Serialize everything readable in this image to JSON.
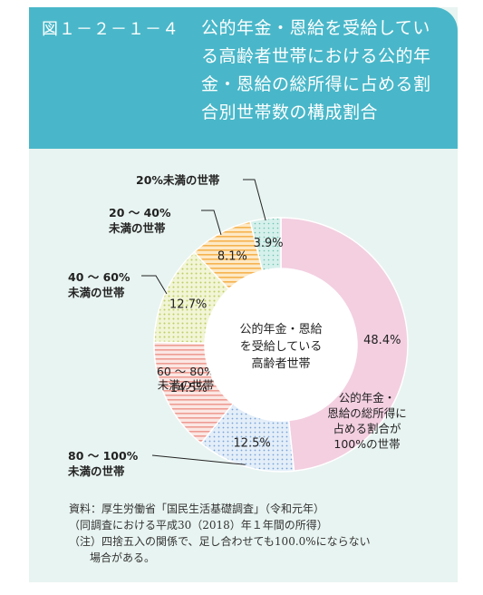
{
  "header": {
    "figure_number": "図１－２－１－４",
    "title": "公的年金・恩給を受給している高齢者世帯における公的年金・恩給の総所得に占める割合別世帯数の構成割合"
  },
  "chart_data": {
    "type": "pie",
    "title": "公的年金・恩給の総所得に占める割合別世帯数の構成割合",
    "center_label": [
      "公的年金・恩給",
      "を受給している",
      "高齢者世帯"
    ],
    "categories": [
      "公的年金・恩給の総所得に占める割合が100%の世帯",
      "80～100%未満の世帯",
      "60～80%未満の世帯",
      "40～60%未満の世帯",
      "20～40%未満の世帯",
      "20%未満の世帯"
    ],
    "values": [
      48.4,
      12.5,
      14.5,
      12.7,
      8.1,
      3.9
    ],
    "value_labels": [
      "48.4%",
      "12.5%",
      "14.5%",
      "12.7%",
      "8.1%",
      "3.9%"
    ],
    "category_labels": [
      [
        "公的年金・",
        "恩給の総所得に",
        "占める割合が",
        "100%の世帯"
      ],
      [
        "80 ～ 100%",
        "未満の世帯"
      ],
      [
        "60 ～ 80%",
        "未満の世帯"
      ],
      [
        "40 ～ 60%",
        "未満の世帯"
      ],
      [
        "20 ～ 40%",
        "未満の世帯"
      ],
      [
        "20%未満の世帯"
      ]
    ],
    "colors": [
      "#f3cfe0",
      "#d6e6f5",
      "#f6cbc6",
      "#e6ecb4",
      "#fbd79a",
      "#c9ebe5"
    ]
  },
  "notes": [
    "資料：厚生労働省「国民生活基礎調査」（令和元年）",
    "（同調査における平成30（2018）年１年間の所得）",
    "（注）四捨五入の関係で、足し合わせても100.0%にならない",
    "場合がある。"
  ]
}
